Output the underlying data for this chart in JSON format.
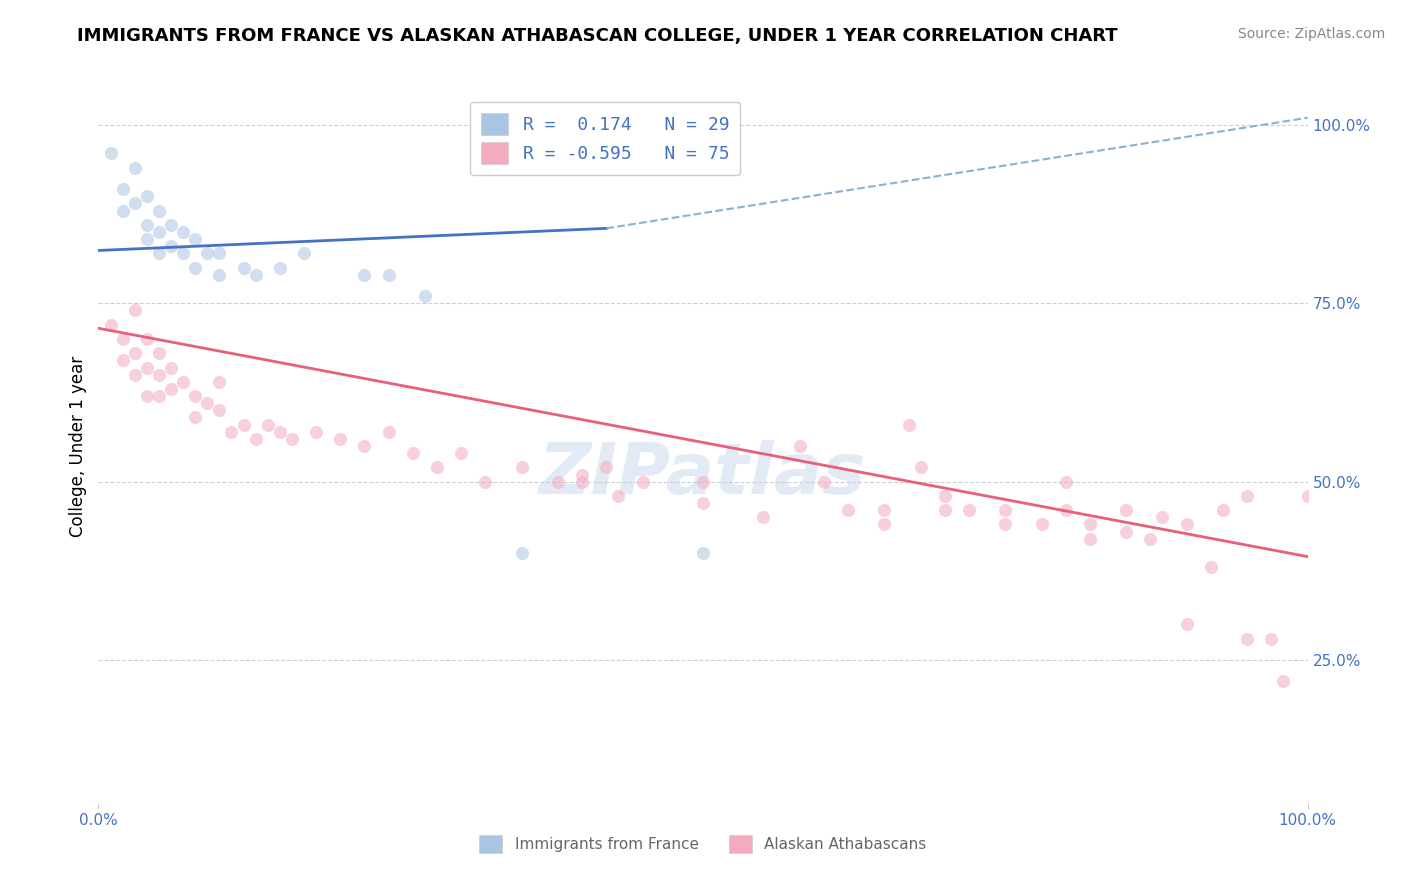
{
  "title": "IMMIGRANTS FROM FRANCE VS ALASKAN ATHABASCAN COLLEGE, UNDER 1 YEAR CORRELATION CHART",
  "source": "Source: ZipAtlas.com",
  "ylabel": "College, Under 1 year",
  "blue_color": "#aac4e4",
  "pink_color": "#f4aabf",
  "blue_line_color": "#4472c4",
  "pink_line_color": "#e8607a",
  "dashed_line_color": "#8ab0d8",
  "watermark": "ZIPatlas",
  "blue_scatter": [
    [
      0.01,
      0.96
    ],
    [
      0.02,
      0.91
    ],
    [
      0.02,
      0.88
    ],
    [
      0.03,
      0.94
    ],
    [
      0.03,
      0.89
    ],
    [
      0.04,
      0.9
    ],
    [
      0.04,
      0.86
    ],
    [
      0.04,
      0.84
    ],
    [
      0.05,
      0.88
    ],
    [
      0.05,
      0.85
    ],
    [
      0.05,
      0.82
    ],
    [
      0.06,
      0.86
    ],
    [
      0.06,
      0.83
    ],
    [
      0.07,
      0.82
    ],
    [
      0.07,
      0.85
    ],
    [
      0.08,
      0.84
    ],
    [
      0.08,
      0.8
    ],
    [
      0.09,
      0.82
    ],
    [
      0.1,
      0.82
    ],
    [
      0.1,
      0.79
    ],
    [
      0.12,
      0.8
    ],
    [
      0.13,
      0.79
    ],
    [
      0.15,
      0.8
    ],
    [
      0.17,
      0.82
    ],
    [
      0.22,
      0.79
    ],
    [
      0.24,
      0.79
    ],
    [
      0.27,
      0.76
    ],
    [
      0.35,
      0.4
    ],
    [
      0.5,
      0.4
    ]
  ],
  "pink_scatter": [
    [
      0.01,
      0.72
    ],
    [
      0.02,
      0.7
    ],
    [
      0.02,
      0.67
    ],
    [
      0.03,
      0.74
    ],
    [
      0.03,
      0.68
    ],
    [
      0.03,
      0.65
    ],
    [
      0.04,
      0.7
    ],
    [
      0.04,
      0.66
    ],
    [
      0.04,
      0.62
    ],
    [
      0.05,
      0.68
    ],
    [
      0.05,
      0.65
    ],
    [
      0.05,
      0.62
    ],
    [
      0.06,
      0.66
    ],
    [
      0.06,
      0.63
    ],
    [
      0.07,
      0.64
    ],
    [
      0.08,
      0.62
    ],
    [
      0.08,
      0.59
    ],
    [
      0.09,
      0.61
    ],
    [
      0.1,
      0.64
    ],
    [
      0.1,
      0.6
    ],
    [
      0.11,
      0.57
    ],
    [
      0.12,
      0.58
    ],
    [
      0.13,
      0.56
    ],
    [
      0.14,
      0.58
    ],
    [
      0.15,
      0.57
    ],
    [
      0.16,
      0.56
    ],
    [
      0.18,
      0.57
    ],
    [
      0.2,
      0.56
    ],
    [
      0.22,
      0.55
    ],
    [
      0.24,
      0.57
    ],
    [
      0.26,
      0.54
    ],
    [
      0.28,
      0.52
    ],
    [
      0.3,
      0.54
    ],
    [
      0.32,
      0.5
    ],
    [
      0.35,
      0.52
    ],
    [
      0.38,
      0.5
    ],
    [
      0.4,
      0.51
    ],
    [
      0.4,
      0.5
    ],
    [
      0.42,
      0.52
    ],
    [
      0.43,
      0.48
    ],
    [
      0.45,
      0.5
    ],
    [
      0.5,
      0.5
    ],
    [
      0.5,
      0.47
    ],
    [
      0.55,
      0.45
    ],
    [
      0.58,
      0.55
    ],
    [
      0.6,
      0.5
    ],
    [
      0.62,
      0.46
    ],
    [
      0.65,
      0.44
    ],
    [
      0.65,
      0.46
    ],
    [
      0.67,
      0.58
    ],
    [
      0.68,
      0.52
    ],
    [
      0.7,
      0.46
    ],
    [
      0.7,
      0.48
    ],
    [
      0.72,
      0.46
    ],
    [
      0.75,
      0.46
    ],
    [
      0.75,
      0.44
    ],
    [
      0.78,
      0.44
    ],
    [
      0.8,
      0.5
    ],
    [
      0.8,
      0.46
    ],
    [
      0.82,
      0.44
    ],
    [
      0.82,
      0.42
    ],
    [
      0.85,
      0.46
    ],
    [
      0.85,
      0.43
    ],
    [
      0.87,
      0.42
    ],
    [
      0.88,
      0.45
    ],
    [
      0.9,
      0.44
    ],
    [
      0.9,
      0.3
    ],
    [
      0.92,
      0.38
    ],
    [
      0.93,
      0.46
    ],
    [
      0.95,
      0.28
    ],
    [
      0.95,
      0.48
    ],
    [
      0.97,
      0.28
    ],
    [
      0.98,
      0.22
    ],
    [
      1.0,
      0.48
    ]
  ],
  "blue_line": {
    "x0": 0.0,
    "x1": 0.42,
    "y0": 0.824,
    "y1": 0.855
  },
  "dashed_line": {
    "x0": 0.42,
    "x1": 1.0,
    "y0": 0.855,
    "y1": 1.01
  },
  "pink_line": {
    "x0": 0.0,
    "x1": 1.0,
    "y0": 0.715,
    "y1": 0.395
  },
  "xlim": [
    0.0,
    1.0
  ],
  "ylim": [
    0.05,
    1.05
  ],
  "yticks": [
    0.25,
    0.5,
    0.75,
    1.0
  ],
  "ytick_labels_right": [
    "25.0%",
    "50.0%",
    "75.0%",
    "100.0%"
  ],
  "title_fontsize": 13,
  "source_fontsize": 10,
  "label_fontsize": 12,
  "legend_fontsize": 13,
  "watermark_fontsize": 52,
  "scatter_size": 90,
  "scatter_alpha": 0.55
}
